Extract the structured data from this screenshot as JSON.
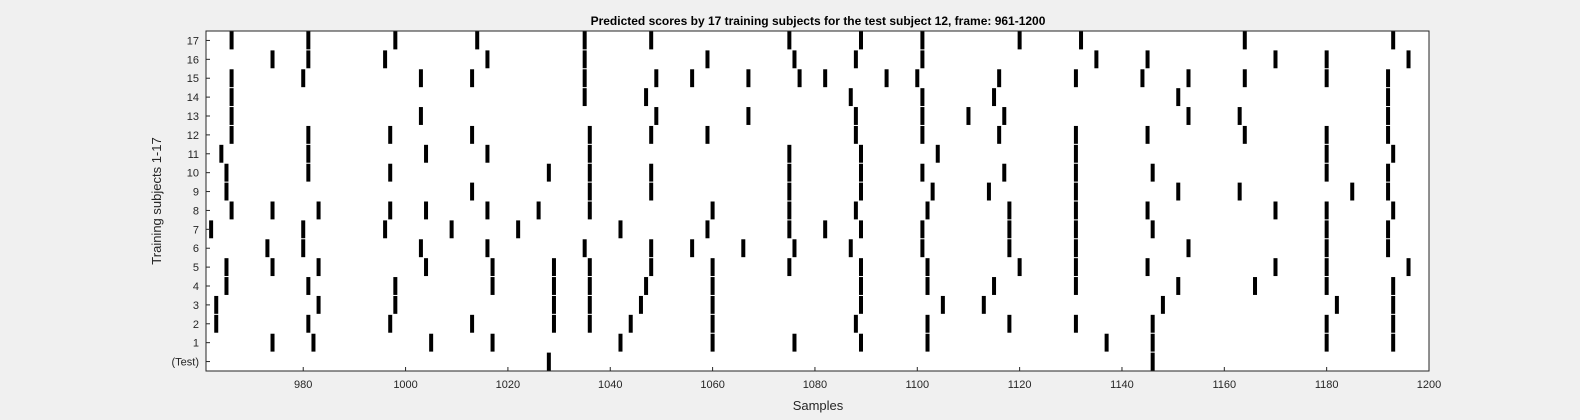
{
  "chart_data": {
    "type": "scatter",
    "title": "Predicted scores by 17 training subjects for the test subject 12, frame: 961-1200",
    "xlabel": "Samples",
    "ylabel": "Training subjects 1-17",
    "xlim": [
      961,
      1200
    ],
    "x_ticks": [
      "980",
      "1000",
      "1020",
      "1040",
      "1060",
      "1080",
      "1100",
      "1120",
      "1140",
      "1160",
      "1180",
      "1200"
    ],
    "y_tick_labels": [
      "(Test)",
      "1",
      "2",
      "3",
      "4",
      "5",
      "6",
      "7",
      "8",
      "9",
      "10",
      "11",
      "12",
      "13",
      "14",
      "15",
      "16",
      "17"
    ],
    "grid": false,
    "marker": "vertical black bar",
    "marker_color": "#000000",
    "background_color": "#ffffff",
    "figure_color": "#f0f0f0",
    "series": [
      {
        "row": "(Test)",
        "x": [
          1028,
          1146
        ]
      },
      {
        "row": "1",
        "x": [
          974,
          982,
          1005,
          1017,
          1042,
          1060,
          1076,
          1089,
          1102,
          1137,
          1146,
          1180,
          1193
        ]
      },
      {
        "row": "2",
        "x": [
          963,
          981,
          997,
          1013,
          1029,
          1036,
          1044,
          1060,
          1088,
          1102,
          1118,
          1131,
          1146,
          1180,
          1193
        ]
      },
      {
        "row": "3",
        "x": [
          963,
          983,
          998,
          1029,
          1036,
          1046,
          1060,
          1089,
          1105,
          1113,
          1148,
          1182,
          1193
        ]
      },
      {
        "row": "4",
        "x": [
          965,
          981,
          998,
          1017,
          1029,
          1036,
          1047,
          1060,
          1089,
          1102,
          1115,
          1131,
          1151,
          1166,
          1180,
          1193
        ]
      },
      {
        "row": "5",
        "x": [
          965,
          974,
          983,
          1004,
          1017,
          1029,
          1036,
          1048,
          1060,
          1075,
          1089,
          1102,
          1120,
          1131,
          1145,
          1170,
          1180,
          1196
        ]
      },
      {
        "row": "6",
        "x": [
          973,
          980,
          1003,
          1016,
          1035,
          1048,
          1056,
          1066,
          1076,
          1087,
          1101,
          1118,
          1131,
          1153,
          1180,
          1192
        ]
      },
      {
        "row": "7",
        "x": [
          962,
          980,
          996,
          1009,
          1022,
          1042,
          1059,
          1075,
          1082,
          1089,
          1101,
          1118,
          1131,
          1146,
          1180,
          1192
        ]
      },
      {
        "row": "8",
        "x": [
          966,
          974,
          983,
          997,
          1004,
          1016,
          1026,
          1036,
          1060,
          1075,
          1088,
          1102,
          1118,
          1131,
          1145,
          1170,
          1180,
          1193
        ]
      },
      {
        "row": "9",
        "x": [
          965,
          1013,
          1036,
          1048,
          1075,
          1089,
          1103,
          1114,
          1131,
          1151,
          1163,
          1185,
          1192
        ]
      },
      {
        "row": "10",
        "x": [
          965,
          981,
          997,
          1028,
          1036,
          1048,
          1075,
          1089,
          1101,
          1117,
          1131,
          1146,
          1180,
          1192
        ]
      },
      {
        "row": "11",
        "x": [
          964,
          981,
          1004,
          1016,
          1036,
          1075,
          1089,
          1104,
          1131,
          1180,
          1193
        ]
      },
      {
        "row": "12",
        "x": [
          966,
          981,
          997,
          1013,
          1036,
          1048,
          1059,
          1088,
          1101,
          1116,
          1131,
          1145,
          1164,
          1180,
          1192
        ]
      },
      {
        "row": "13",
        "x": [
          966,
          1003,
          1049,
          1067,
          1088,
          1101,
          1110,
          1117,
          1153,
          1163,
          1192
        ]
      },
      {
        "row": "14",
        "x": [
          966,
          1035,
          1047,
          1087,
          1101,
          1115,
          1151,
          1192
        ]
      },
      {
        "row": "15",
        "x": [
          966,
          980,
          1003,
          1013,
          1035,
          1049,
          1056,
          1067,
          1077,
          1082,
          1094,
          1100,
          1116,
          1131,
          1144,
          1153,
          1164,
          1180,
          1192
        ]
      },
      {
        "row": "16",
        "x": [
          974,
          981,
          996,
          1016,
          1035,
          1059,
          1076,
          1088,
          1101,
          1135,
          1145,
          1170,
          1180,
          1196
        ]
      },
      {
        "row": "17",
        "x": [
          966,
          981,
          998,
          1014,
          1035,
          1048,
          1075,
          1089,
          1101,
          1120,
          1132,
          1164,
          1193
        ]
      }
    ]
  }
}
